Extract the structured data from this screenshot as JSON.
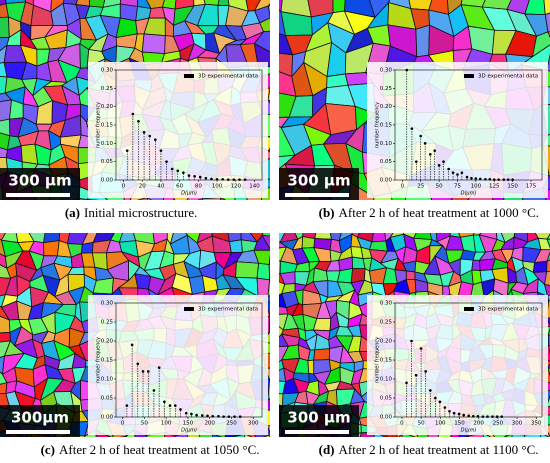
{
  "chart_data": [
    {
      "type": "stem",
      "label": "(a)",
      "caption": "Initial microstructure.",
      "scale_bar": "300 µm",
      "x_label": "D(μm)",
      "y_label": "number frequency",
      "x": [
        4,
        10,
        16,
        22,
        28,
        34,
        40,
        46,
        52,
        58,
        64,
        70,
        76,
        82,
        88,
        94,
        100,
        106,
        112,
        118,
        124,
        130
      ],
      "series": [
        {
          "name": "3D experimental data",
          "color": "#000000",
          "values": [
            0.08,
            0.18,
            0.16,
            0.13,
            0.12,
            0.11,
            0.08,
            0.05,
            0.03,
            0.025,
            0.02,
            0.012,
            0.01,
            0.008,
            0.005,
            0.003,
            0.002,
            0.002,
            0.001,
            0.001,
            0.001,
            0.001
          ]
        }
      ],
      "xlim": [
        -8,
        148
      ],
      "xticks": [
        0,
        20,
        40,
        60,
        80,
        100,
        120,
        140
      ],
      "ylim": [
        0,
        0.3
      ],
      "yticks": [
        {
          "value": 0,
          "label": "0.00"
        },
        0.05,
        {
          "value": 0.1,
          "label": "0.10"
        },
        0.15,
        {
          "value": 0.2,
          "label": "0.20"
        },
        0.25,
        {
          "value": 0.3,
          "label": "0.30"
        }
      ]
    },
    {
      "type": "stem",
      "label": "(b)",
      "caption": "After 2 h of heat treatment at 1000 °C.",
      "scale_bar": "300 µm",
      "x_label": "D(μm)",
      "y_label": "number frequency",
      "x": [
        6,
        13,
        19,
        25,
        31,
        38,
        44,
        50,
        56,
        63,
        69,
        75,
        81,
        88,
        94,
        100,
        106,
        113,
        119,
        125,
        131,
        138,
        144,
        150
      ],
      "series": [
        {
          "name": "3D experimental data",
          "color": "#000000",
          "values": [
            0.3,
            0.14,
            0.05,
            0.12,
            0.1,
            0.07,
            0.08,
            0.04,
            0.05,
            0.03,
            0.02,
            0.015,
            0.02,
            0.008,
            0.005,
            0.004,
            0.003,
            0.002,
            0.002,
            0.001,
            0.001,
            0.001,
            0.001,
            0.001
          ]
        }
      ],
      "xlim": [
        -10,
        190
      ],
      "xticks": [
        0,
        25,
        50,
        75,
        100,
        125,
        150,
        175
      ],
      "ylim": [
        0,
        0.3
      ],
      "yticks": [
        {
          "value": 0,
          "label": "0.00"
        },
        0.05,
        {
          "value": 0.1,
          "label": "0.10"
        },
        0.15,
        {
          "value": 0.2,
          "label": "0.20"
        },
        0.25,
        {
          "value": 0.3,
          "label": "0.30"
        }
      ]
    },
    {
      "type": "stem",
      "label": "(c)",
      "caption": "After 2 h of heat treatment at 1050 °C.",
      "scale_bar": "300μm",
      "x_label": "D(μm)",
      "y_label": "number frequency",
      "x": [
        10,
        22,
        35,
        47,
        59,
        72,
        84,
        96,
        109,
        121,
        133,
        146,
        158,
        170,
        183,
        195,
        207,
        220,
        232,
        244,
        257,
        270
      ],
      "series": [
        {
          "name": "3D experimental data",
          "color": "#000000",
          "values": [
            0.03,
            0.19,
            0.14,
            0.12,
            0.12,
            0.07,
            0.13,
            0.04,
            0.03,
            0.03,
            0.02,
            0.01,
            0.008,
            0.005,
            0.004,
            0.003,
            0.002,
            0.002,
            0.001,
            0.001,
            0.001,
            0.001
          ]
        }
      ],
      "xlim": [
        -15,
        320
      ],
      "xticks": [
        0,
        50,
        100,
        150,
        200,
        250,
        300
      ],
      "ylim": [
        0,
        0.3
      ],
      "yticks": [
        {
          "value": 0,
          "label": "0.00"
        },
        0.05,
        {
          "value": 0.1,
          "label": "0.10"
        },
        0.15,
        {
          "value": 0.2,
          "label": "0.20"
        },
        0.25,
        {
          "value": 0.3,
          "label": "0.30"
        }
      ]
    },
    {
      "type": "stem",
      "label": "(d)",
      "caption": "After 2 h of heat treatment at 1100 °C.",
      "scale_bar": "300 µm",
      "x_label": "D(μm)",
      "y_label": "number frequency",
      "x": [
        12,
        25,
        37,
        50,
        62,
        74,
        87,
        99,
        112,
        124,
        136,
        149,
        161,
        174,
        186,
        198,
        211,
        223,
        236,
        248,
        260
      ],
      "series": [
        {
          "name": "3D experimental data",
          "color": "#000000",
          "values": [
            0.09,
            0.2,
            0.11,
            0.18,
            0.12,
            0.07,
            0.05,
            0.04,
            0.025,
            0.015,
            0.01,
            0.008,
            0.005,
            0.003,
            0.002,
            0.002,
            0.001,
            0.001,
            0.001,
            0.001,
            0.001
          ]
        }
      ],
      "xlim": [
        -18,
        365
      ],
      "xticks": [
        0,
        50,
        100,
        150,
        200,
        250,
        300,
        350
      ],
      "ylim": [
        0,
        0.3
      ],
      "yticks": [
        {
          "value": 0,
          "label": "0.00"
        },
        0.05,
        {
          "value": 0.1,
          "label": "0.10"
        },
        0.15,
        {
          "value": 0.2,
          "label": "0.20"
        },
        0.25,
        {
          "value": 0.3,
          "label": "0.30"
        }
      ]
    }
  ]
}
